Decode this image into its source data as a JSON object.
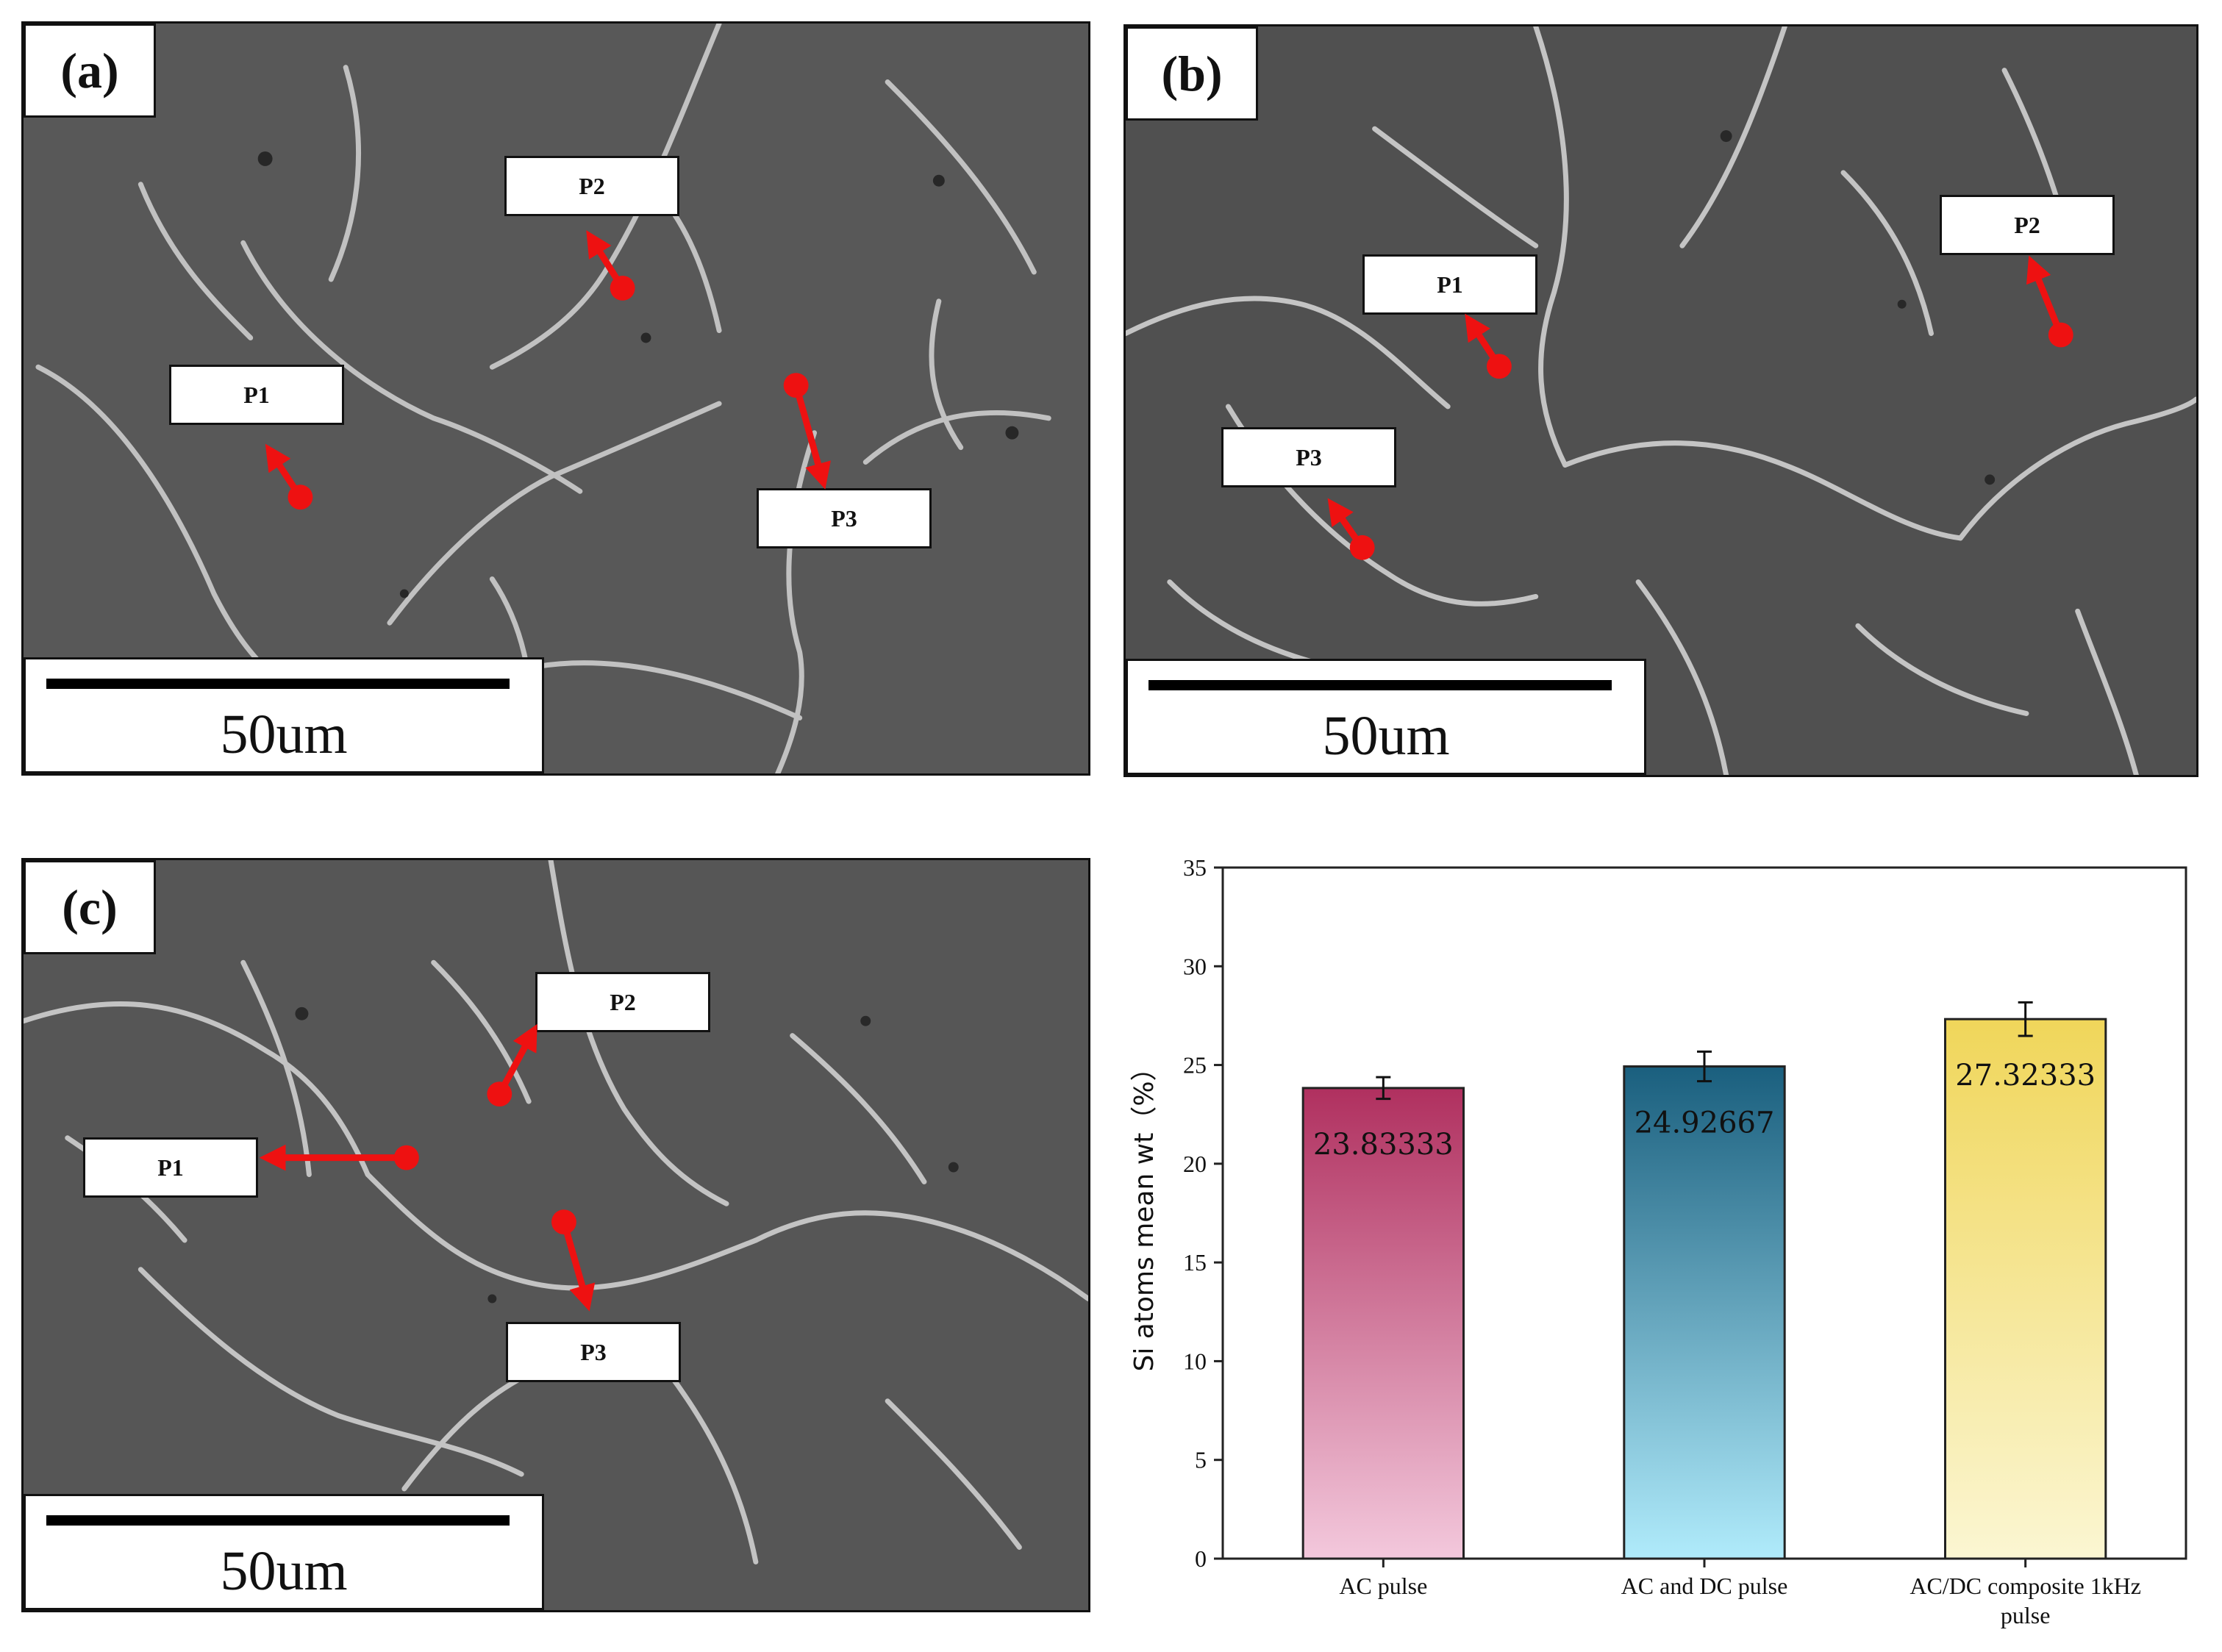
{
  "panels": [
    {
      "label": "(a)",
      "scale_label": "50um",
      "points": [
        {
          "label": "P1"
        },
        {
          "label": "P2"
        },
        {
          "label": "P3"
        }
      ]
    },
    {
      "label": "(b)",
      "scale_label": "50um",
      "points": [
        {
          "label": "P1"
        },
        {
          "label": "P2"
        },
        {
          "label": "P3"
        }
      ]
    },
    {
      "label": "(c)",
      "scale_label": "50um",
      "points": [
        {
          "label": "P1"
        },
        {
          "label": "P2"
        },
        {
          "label": "P3"
        }
      ]
    }
  ],
  "colors": {
    "marker": "#ee1111",
    "sem_background": "#555555",
    "sem_boundary": "#d8d8d8"
  },
  "chart_data": {
    "type": "bar",
    "categories": [
      "AC pulse",
      "AC and DC pulse",
      "AC/DC composite 1kHz pulse"
    ],
    "category_labels": [
      [
        "AC pulse"
      ],
      [
        "AC and DC pulse"
      ],
      [
        "AC/DC composite 1kHz",
        "pulse"
      ]
    ],
    "values": [
      23.83333,
      24.92667,
      27.32333
    ],
    "value_labels": [
      "23.83333",
      "24.92667",
      "27.32333"
    ],
    "errors": [
      0.55,
      0.75,
      0.85
    ],
    "ylabel": "Si atoms mean wt（%）",
    "xlabel": "",
    "title": "",
    "ylim": [
      0,
      35
    ],
    "yticks": [
      0,
      5,
      10,
      15,
      20,
      25,
      30,
      35
    ],
    "grid": false,
    "legend": "none",
    "bar_gradients": [
      {
        "top": "#b0305f",
        "bottom": "#f3c8dc"
      },
      {
        "top": "#1a5f7e",
        "bottom": "#b0ebfb"
      },
      {
        "top": "#f0d65a",
        "bottom": "#fbf6d2"
      }
    ]
  }
}
